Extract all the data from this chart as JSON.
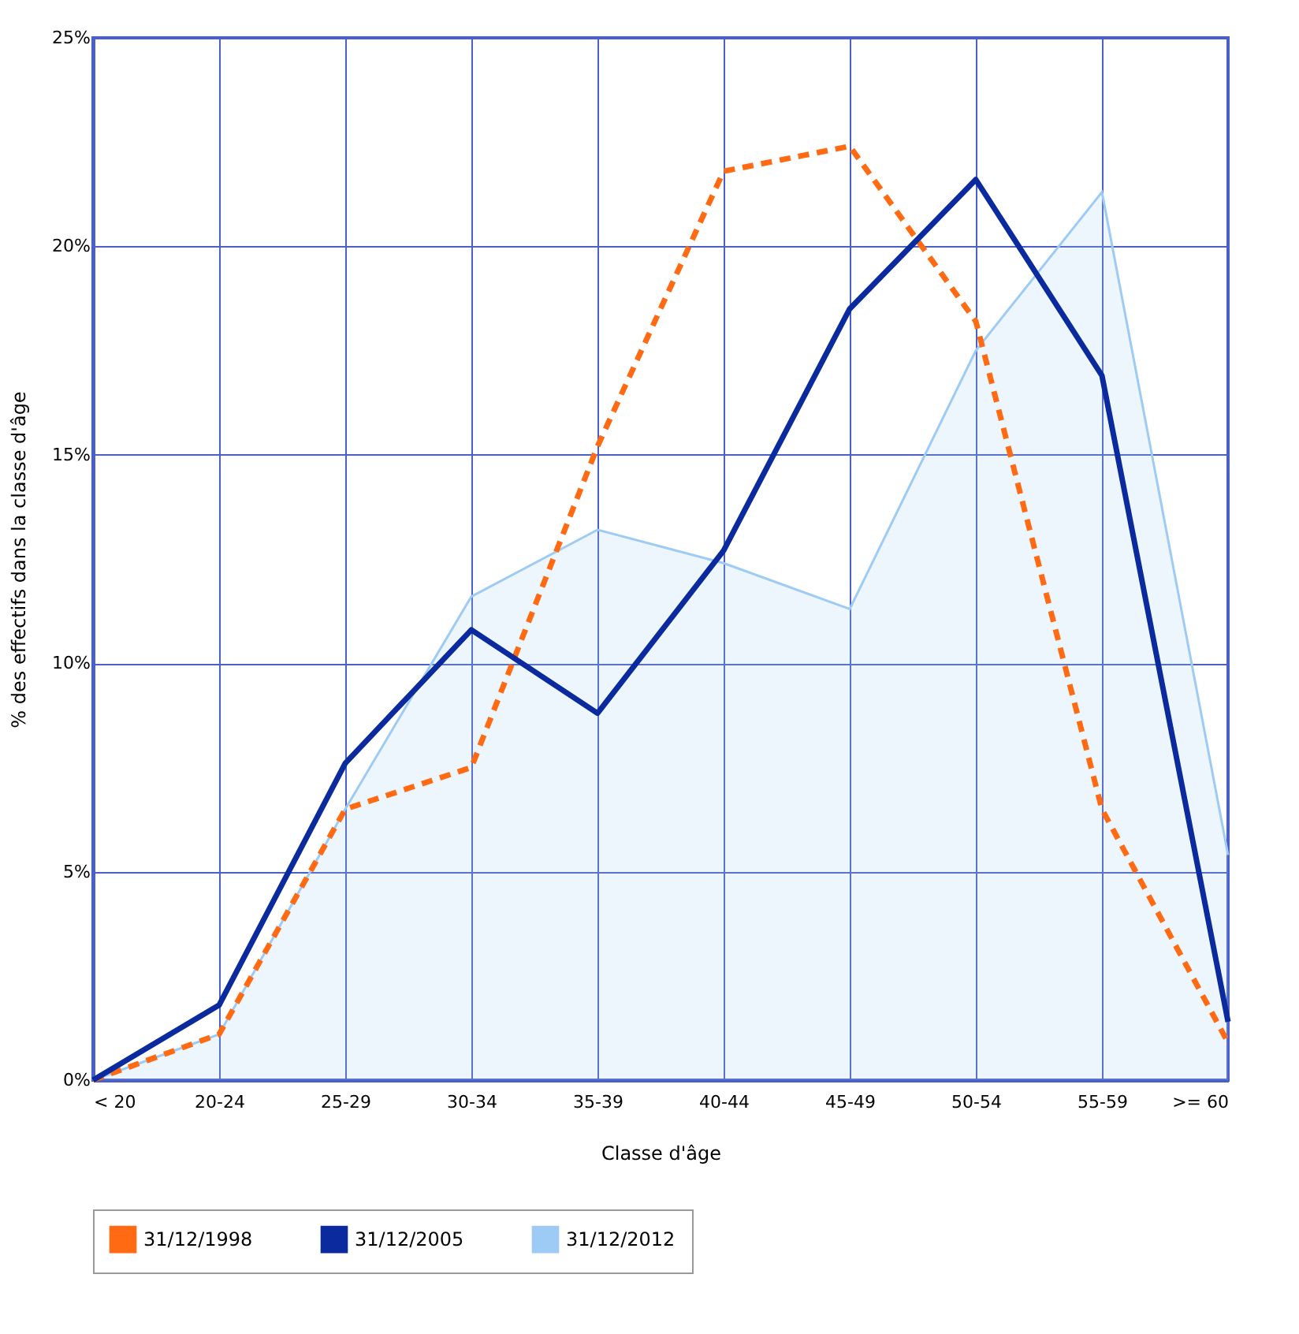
{
  "chart_data": {
    "type": "line",
    "xlabel": "Classe d'âge",
    "ylabel": "% des effectifs dans la classe d'âge",
    "categories": [
      "< 20",
      "20-24",
      "25-29",
      "30-34",
      "35-39",
      "40-44",
      "45-49",
      "50-54",
      "55-59",
      ">= 60"
    ],
    "series": [
      {
        "name": "31/12/1998",
        "line_style": "dashed",
        "color": "#ff6a13",
        "values": [
          0,
          1.1,
          6.5,
          7.5,
          15.2,
          21.8,
          22.4,
          18.2,
          6.5,
          0.9
        ]
      },
      {
        "name": "31/12/2005",
        "line_style": "solid",
        "color": "#0a2a9e",
        "values": [
          0,
          1.8,
          7.6,
          10.8,
          8.8,
          12.7,
          18.5,
          21.6,
          16.9,
          1.4
        ]
      },
      {
        "name": "31/12/2012",
        "type": "area",
        "color": "#9ecbf5",
        "values": [
          0,
          1.1,
          6.5,
          11.6,
          13.2,
          12.4,
          11.3,
          17.5,
          21.3,
          5.4
        ]
      }
    ],
    "ylim": [
      0,
      25
    ],
    "yticks": [
      {
        "value": 0,
        "label": "0%"
      },
      {
        "value": 5,
        "label": "5%"
      },
      {
        "value": 10,
        "label": "10%"
      },
      {
        "value": 15,
        "label": "15%"
      },
      {
        "value": 20,
        "label": "20%"
      },
      {
        "value": 25,
        "label": "25%"
      }
    ],
    "grid": true,
    "legend": "bottom",
    "marker": "none"
  }
}
